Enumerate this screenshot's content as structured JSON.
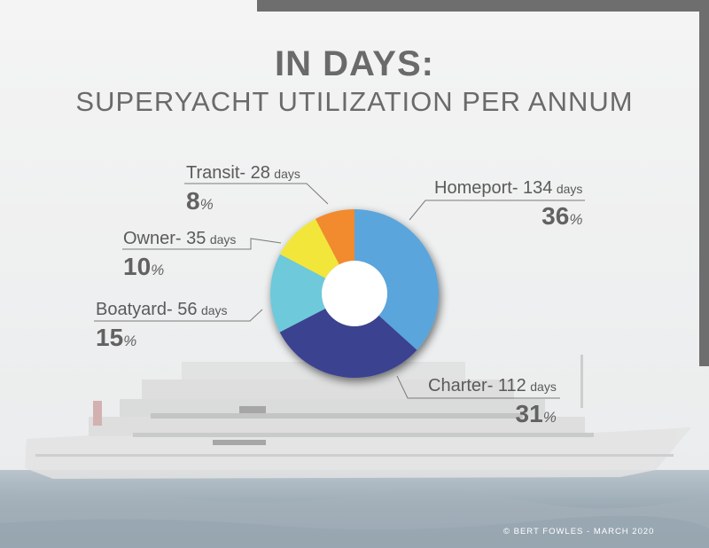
{
  "title": "IN DAYS:",
  "subtitle": "SUPERYACHT UTILIZATION PER ANNUM",
  "copyright": "© BERT FOWLES - MARCH 2020",
  "colors": {
    "homeport": "#5aa5dc",
    "charter": "#3b4390",
    "boatyard": "#6ec9db",
    "owner": "#f2e63a",
    "transit": "#f28a2e"
  },
  "chart_data": {
    "type": "pie",
    "title": "SUPERYACHT UTILIZATION PER ANNUM",
    "slices": [
      {
        "label": "Homeport",
        "days": 134,
        "days_unit": "days",
        "percent": 36,
        "percent_text": "36",
        "color": "#5aa5dc"
      },
      {
        "label": "Charter",
        "days": 112,
        "days_unit": "days",
        "percent": 31,
        "percent_text": "31",
        "color": "#3b4390"
      },
      {
        "label": "Boatyard",
        "days": 56,
        "days_unit": "days",
        "percent": 15,
        "percent_text": "15",
        "color": "#6ec9db"
      },
      {
        "label": "Owner",
        "days": 35,
        "days_unit": "days",
        "percent": 10,
        "percent_text": "10",
        "color": "#f2e63a"
      },
      {
        "label": "Transit",
        "days": 28,
        "days_unit": "days",
        "percent": 8,
        "percent_text": "8",
        "color": "#f28a2e"
      }
    ]
  },
  "labels": {
    "homeport": {
      "name": "Homeport- 134",
      "days": "days",
      "pct": "36",
      "pct_sign": "%"
    },
    "charter": {
      "name": "Charter- 112",
      "days": "days",
      "pct": "31",
      "pct_sign": "%"
    },
    "boatyard": {
      "name": "Boatyard- 56",
      "days": "days",
      "pct": "15",
      "pct_sign": "%"
    },
    "owner": {
      "name": "Owner- 35",
      "days": "days",
      "pct": "10",
      "pct_sign": "%"
    },
    "transit": {
      "name": "Transit- 28",
      "days": "days",
      "pct": "8",
      "pct_sign": "%"
    }
  }
}
